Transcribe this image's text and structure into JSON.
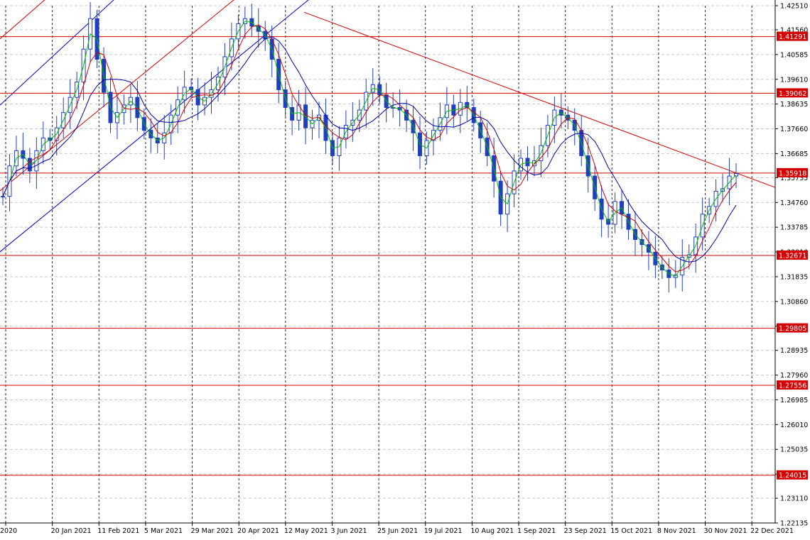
{
  "chart_data": {
    "type": "candlestick",
    "symbol": "",
    "timeframe": "",
    "grid": true,
    "x_ticks": [
      "2020",
      "20 Jan 2021",
      "11 Feb 2021",
      "5 Mar 2021",
      "29 Mar 2021",
      "20 Apr 2021",
      "12 May 2021",
      "3 Jun 2021",
      "25 Jun 2021",
      "19 Jul 2021",
      "10 Aug 2021",
      "1 Sep 2021",
      "23 Sep 2021",
      "15 Oct 2021",
      "8 Nov 2021",
      "30 Nov 2021",
      "22 Dec 2021"
    ],
    "y_ticks": [
      "1.42510",
      "1.41560",
      "1.40585",
      "1.39610",
      "1.38635",
      "1.37660",
      "1.36685",
      "1.35735",
      "1.34760",
      "1.33785",
      "1.32810",
      "1.31835",
      "1.30860",
      "1.29885",
      "1.28935",
      "1.27960",
      "1.26985",
      "1.26010",
      "1.25035",
      "1.24060",
      "1.23110",
      "1.22135"
    ],
    "ylim": [
      1.22135,
      1.4251
    ],
    "horizontal_levels": [
      "1.41291",
      "1.39062",
      "1.35918",
      "1.32671",
      "1.29805",
      "1.27556",
      "1.24015"
    ],
    "series": [
      {
        "kind": "ohlc",
        "color": "#1f3fbf"
      },
      {
        "kind": "ma",
        "color": "#00bb00"
      },
      {
        "kind": "ma",
        "color": "#d40000"
      },
      {
        "kind": "ma",
        "color": "#0000aa"
      }
    ],
    "price_path": [
      [
        1.35,
        1.362,
        1.368,
        1.365,
        1.36,
        1.368,
        1.373,
        1.372,
        1.377,
        1.383,
        1.389,
        1.395,
        1.408,
        1.42,
        1.404,
        1.391,
        1.379,
        1.383,
        1.386,
        1.389,
        1.381,
        1.376,
        1.373,
        1.371,
        1.375,
        1.382,
        1.388,
        1.393,
        1.392,
        1.386,
        1.389,
        1.392,
        1.397,
        1.405,
        1.412,
        1.418,
        1.42,
        1.417,
        1.415,
        1.412,
        1.404,
        1.392,
        1.385,
        1.38,
        1.386,
        1.377,
        1.38,
        1.382,
        1.372,
        1.366,
        1.373,
        1.378,
        1.38,
        1.384,
        1.391,
        1.394,
        1.39,
        1.385,
        1.385,
        1.384,
        1.38,
        1.375,
        1.366,
        1.372,
        1.376,
        1.381,
        1.386,
        1.382,
        1.387,
        1.385,
        1.379,
        1.373,
        1.366,
        1.356,
        1.343,
        1.351,
        1.36,
        1.365,
        1.362,
        1.364,
        1.37,
        1.378,
        1.384,
        1.382,
        1.38,
        1.376,
        1.366,
        1.358,
        1.349,
        1.341,
        1.339,
        1.348,
        1.343,
        1.337,
        1.333,
        1.331,
        1.328,
        1.323,
        1.321,
        1.318,
        1.319,
        1.326,
        1.327,
        1.334,
        1.343,
        1.346,
        1.352,
        1.353,
        1.358,
        1.359
      ]
    ],
    "ma_periods": [
      10,
      20,
      40
    ],
    "channels": [
      {
        "color": "#0000c8",
        "p1": [
          "2020",
          1.388
        ],
        "p2": [
          "20 Jan 2021",
          1.405
        ],
        "label": ""
      },
      {
        "color": "#0000c8",
        "p1": [
          "2020",
          1.33
        ],
        "p2": [
          "20 Jan 2021",
          1.345
        ],
        "label": ""
      },
      {
        "color": "#d40000",
        "p1": [
          "2020",
          1.414
        ],
        "p2": [
          "20 Jan 2021",
          1.43
        ],
        "label": ""
      },
      {
        "color": "#d40000",
        "p1": [
          "2020",
          1.354
        ],
        "p2": [
          "20 Jan 2021",
          1.369
        ],
        "label": ""
      }
    ]
  }
}
